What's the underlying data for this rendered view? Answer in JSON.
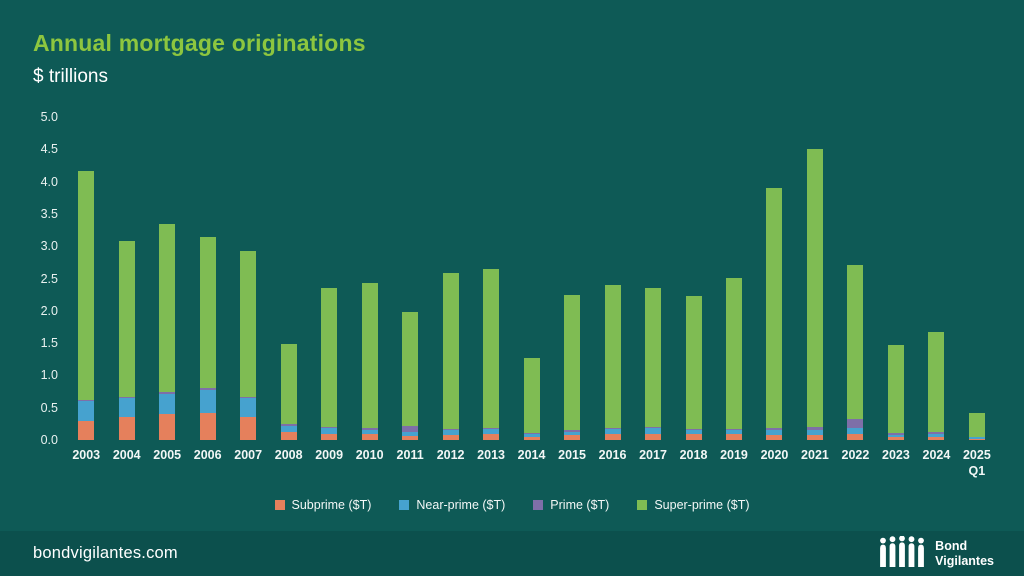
{
  "header": {
    "title": "Annual mortgage originations",
    "subtitle": "$ trillions"
  },
  "footer": {
    "site": "bondvigilantes.com",
    "logo_line1": "Bond",
    "logo_line2": "Vigilantes"
  },
  "colors": {
    "background": "#0e5a56",
    "title": "#8dc63f",
    "axis_text": "#e9f1f0",
    "subprime": "#e5805c",
    "near_prime": "#46a2cf",
    "prime": "#7e6fa8",
    "super_prime": "#7fbc53"
  },
  "chart_data": {
    "type": "bar",
    "stacked": true,
    "title": "Annual mortgage originations",
    "ylabel": "$ trillions",
    "xlabel": "",
    "grid": false,
    "legend_position": "bottom",
    "ylim": [
      0,
      5.0
    ],
    "ytick_step": 0.5,
    "yticks": [
      "0.0",
      "0.5",
      "1.0",
      "1.5",
      "2.0",
      "2.5",
      "3.0",
      "3.5",
      "4.0",
      "4.5",
      "5.0"
    ],
    "categories": [
      "2003",
      "2004",
      "2005",
      "2006",
      "2007",
      "2008",
      "2009",
      "2010",
      "2011",
      "2012",
      "2013",
      "2014",
      "2015",
      "2016",
      "2017",
      "2018",
      "2019",
      "2020",
      "2021",
      "2022",
      "2023",
      "2024",
      "2025 Q1"
    ],
    "series": [
      {
        "name": "Subprime ($T)",
        "color": "#e5805c",
        "values": [
          0.3,
          0.35,
          0.4,
          0.42,
          0.35,
          0.12,
          0.1,
          0.1,
          0.07,
          0.08,
          0.1,
          0.05,
          0.08,
          0.1,
          0.1,
          0.09,
          0.09,
          0.08,
          0.08,
          0.1,
          0.04,
          0.05,
          0.02
        ]
      },
      {
        "name": "Near-prime ($T)",
        "color": "#46a2cf",
        "values": [
          0.3,
          0.3,
          0.32,
          0.36,
          0.3,
          0.1,
          0.08,
          0.06,
          0.06,
          0.07,
          0.07,
          0.04,
          0.05,
          0.07,
          0.08,
          0.06,
          0.06,
          0.07,
          0.07,
          0.08,
          0.04,
          0.05,
          0.02
        ]
      },
      {
        "name": "Prime ($T)",
        "color": "#7e6fa8",
        "values": [
          0.02,
          0.02,
          0.02,
          0.02,
          0.02,
          0.03,
          0.02,
          0.02,
          0.08,
          0.02,
          0.02,
          0.02,
          0.02,
          0.02,
          0.02,
          0.02,
          0.02,
          0.03,
          0.05,
          0.15,
          0.03,
          0.03,
          0.01
        ]
      },
      {
        "name": "Super-prime ($T)",
        "color": "#7fbc53",
        "values": [
          3.54,
          2.41,
          2.6,
          2.34,
          2.26,
          1.24,
          2.15,
          2.25,
          1.77,
          2.41,
          2.46,
          1.16,
          2.09,
          2.21,
          2.15,
          2.06,
          2.34,
          3.72,
          4.3,
          2.38,
          1.36,
          1.54,
          0.37
        ]
      }
    ]
  }
}
